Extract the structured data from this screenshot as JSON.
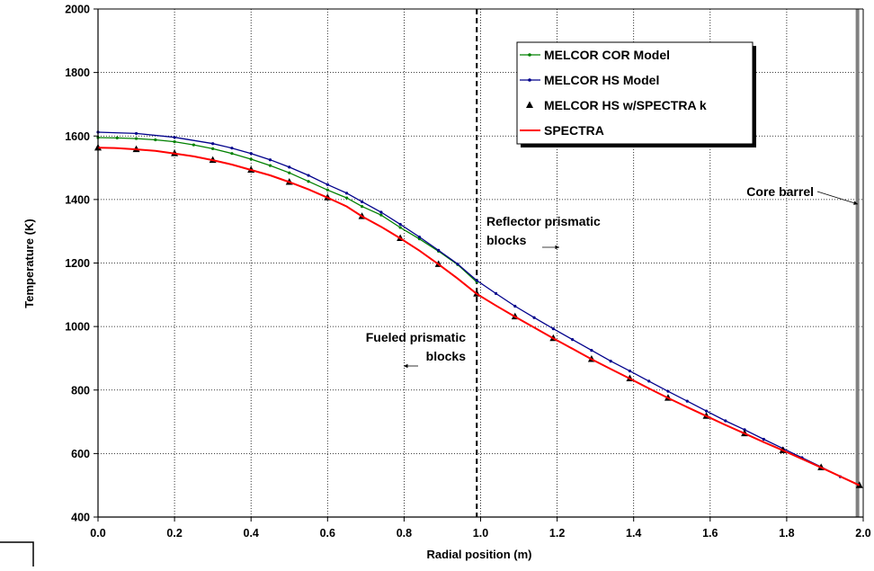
{
  "chart_data": {
    "type": "line",
    "title": "",
    "xlabel": "Radial position (m)",
    "ylabel": "Temperature (K)",
    "xlim": [
      0.0,
      2.0
    ],
    "ylim": [
      400,
      2000
    ],
    "xticks": [
      "0.0",
      "0.2",
      "0.4",
      "0.6",
      "0.8",
      "1.0",
      "1.2",
      "1.4",
      "1.6",
      "1.8",
      "2.0"
    ],
    "yticks": [
      "400",
      "600",
      "800",
      "1000",
      "1200",
      "1400",
      "1600",
      "1800",
      "2000"
    ],
    "grid": true,
    "legend_position": "top-right",
    "series": [
      {
        "name": "MELCOR COR Model",
        "color": "#008000",
        "marker": "dot",
        "x": [
          0.0,
          0.05,
          0.1,
          0.15,
          0.2,
          0.25,
          0.3,
          0.35,
          0.4,
          0.45,
          0.5,
          0.55,
          0.6,
          0.65,
          0.69,
          0.74,
          0.79,
          0.84,
          0.89,
          0.94,
          0.99
        ],
        "y": [
          1595,
          1594,
          1592,
          1588,
          1582,
          1572,
          1560,
          1545,
          1527,
          1507,
          1484,
          1457,
          1430,
          1405,
          1378,
          1351,
          1312,
          1276,
          1237,
          1195,
          1140
        ]
      },
      {
        "name": "MELCOR HS Model",
        "color": "#00008B",
        "marker": "dot",
        "x": [
          0.0,
          0.1,
          0.2,
          0.3,
          0.35,
          0.4,
          0.45,
          0.5,
          0.55,
          0.6,
          0.65,
          0.69,
          0.74,
          0.79,
          0.84,
          0.89,
          0.94,
          0.99,
          1.04,
          1.09,
          1.14,
          1.19,
          1.24,
          1.29,
          1.34,
          1.39,
          1.44,
          1.49,
          1.54,
          1.59,
          1.64,
          1.69,
          1.74,
          1.79,
          1.84,
          1.89,
          1.94,
          1.99
        ],
        "y": [
          1612,
          1608,
          1596,
          1576,
          1562,
          1545,
          1525,
          1502,
          1476,
          1447,
          1420,
          1393,
          1360,
          1322,
          1282,
          1240,
          1197,
          1145,
          1104,
          1064,
          1028,
          993,
          959,
          925,
          891,
          860,
          828,
          796,
          765,
          734,
          703,
          675,
          645,
          616,
          587,
          558,
          527,
          500
        ]
      },
      {
        "name": "MELCOR HS w/SPECTRA k",
        "color": "#000000",
        "marker": "triangle",
        "x": [
          0.0,
          0.1,
          0.2,
          0.3,
          0.4,
          0.5,
          0.6,
          0.69,
          0.79,
          0.89,
          0.99,
          1.09,
          1.19,
          1.29,
          1.39,
          1.49,
          1.59,
          1.69,
          1.79,
          1.89,
          1.99
        ],
        "y": [
          1563,
          1558,
          1545,
          1524,
          1493,
          1455,
          1406,
          1347,
          1278,
          1196,
          1103,
          1031,
          963,
          897,
          836,
          775,
          718,
          663,
          610,
          556,
          500
        ]
      },
      {
        "name": "SPECTRA",
        "color": "#FF0000",
        "marker": "none",
        "x": [
          0.0,
          0.05,
          0.1,
          0.15,
          0.2,
          0.25,
          0.3,
          0.35,
          0.4,
          0.45,
          0.5,
          0.55,
          0.6,
          0.65,
          0.69,
          0.74,
          0.79,
          0.84,
          0.89,
          0.94,
          0.99,
          1.04,
          1.09,
          1.14,
          1.19,
          1.24,
          1.29,
          1.34,
          1.39,
          1.44,
          1.49,
          1.54,
          1.59,
          1.64,
          1.69,
          1.74,
          1.79,
          1.84,
          1.89,
          1.94,
          1.99
        ],
        "y": [
          1563,
          1562,
          1558,
          1553,
          1545,
          1536,
          1524,
          1510,
          1493,
          1476,
          1455,
          1432,
          1406,
          1378,
          1347,
          1314,
          1278,
          1239,
          1196,
          1151,
          1103,
          1066,
          1031,
          997,
          963,
          930,
          897,
          866,
          836,
          805,
          775,
          746,
          718,
          690,
          663,
          636,
          610,
          583,
          556,
          528,
          500
        ]
      }
    ],
    "vertical_line": {
      "x": 0.99,
      "style": "dashed",
      "color": "#000000"
    },
    "core_barrel_line": {
      "x": 1.985,
      "color": "#808080"
    },
    "annotations": [
      {
        "id": "reflector",
        "lines": [
          "Reflector prismatic",
          "blocks"
        ],
        "arrow": "right"
      },
      {
        "id": "fueled",
        "lines": [
          "Fueled prismatic",
          "blocks"
        ],
        "arrow": "left"
      },
      {
        "id": "core-barrel",
        "lines": [
          "Core barrel"
        ],
        "arrow": "to-line"
      }
    ]
  }
}
